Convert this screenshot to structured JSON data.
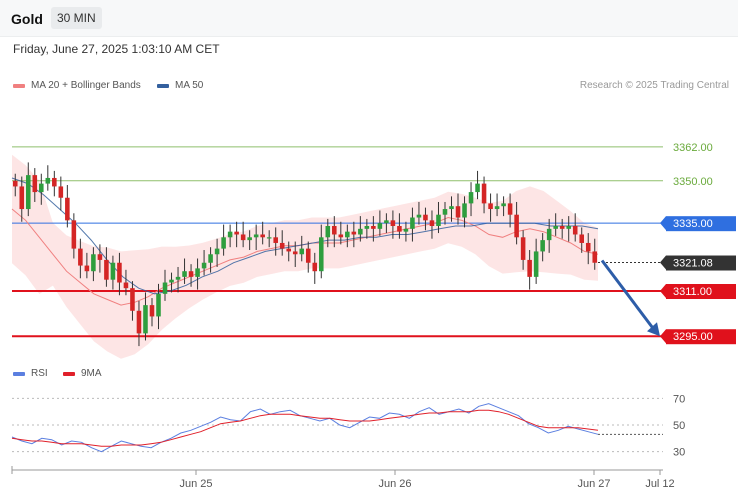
{
  "header": {
    "symbol": "Gold",
    "timeframe": "30 MIN",
    "datetime": "Friday, June 27, 2025 1:03:10 AM CET"
  },
  "legend": {
    "main": [
      {
        "label": "MA 20 + Bollinger Bands",
        "color": "#f08080"
      },
      {
        "label": "MA 50",
        "color": "#34609e"
      }
    ],
    "rsi": [
      {
        "label": "RSI",
        "color": "#5b7fe0"
      },
      {
        "label": "9MA",
        "color": "#e0202a"
      }
    ]
  },
  "credit": "Research © 2025 Trading Central",
  "chart_data": [
    {
      "type": "line",
      "title": "Gold 30 MIN",
      "x_labels": [
        "Jun 25",
        "Jun 26",
        "Jun 27",
        "Jul 12"
      ],
      "levels": [
        {
          "label": "3362.00",
          "value": 3362.0,
          "color": "#6aaa3c",
          "kind": "resistance"
        },
        {
          "label": "3350.00",
          "value": 3350.0,
          "color": "#6aaa3c",
          "kind": "resistance"
        },
        {
          "label": "3335.00",
          "value": 3335.0,
          "color": "#2f6fe0",
          "kind": "pivot"
        },
        {
          "label": "3321.08",
          "value": 3321.08,
          "color": "#333333",
          "kind": "last"
        },
        {
          "label": "3311.00",
          "value": 3311.0,
          "color": "#e0111c",
          "kind": "support"
        },
        {
          "label": "3295.00",
          "value": 3295.0,
          "color": "#e0111c",
          "kind": "support"
        }
      ],
      "price_path": [
        3348,
        3340,
        3352,
        3346,
        3349,
        3351,
        3348,
        3344,
        3336,
        3326,
        3320,
        3318,
        3324,
        3322,
        3315,
        3321,
        3314,
        3312,
        3304,
        3296,
        3306,
        3302,
        3310,
        3314,
        3315,
        3316,
        3318,
        3316,
        3319,
        3321,
        3324,
        3326,
        3330,
        3332,
        3331,
        3329,
        3330,
        3331,
        3330,
        3330,
        3328,
        3326,
        3325,
        3324,
        3326,
        3321,
        3318,
        3330,
        3334,
        3331,
        3330,
        3332,
        3331,
        3333,
        3334,
        3333,
        3335,
        3336,
        3334,
        3332,
        3333,
        3337,
        3338,
        3336,
        3334,
        3338,
        3340,
        3341,
        3337,
        3342,
        3346,
        3349,
        3342,
        3340,
        3341,
        3342,
        3338,
        3330,
        3322,
        3316,
        3325,
        3329,
        3333,
        3334,
        3333,
        3334,
        3331,
        3328,
        3325,
        3321
      ],
      "ma20": [
        3340,
        3336,
        3330,
        3324,
        3318,
        3314,
        3310,
        3308,
        3306,
        3307,
        3309,
        3312,
        3314,
        3316,
        3318,
        3320,
        3322,
        3323,
        3325,
        3326,
        3327,
        3327,
        3328,
        3328,
        3328,
        3329,
        3330,
        3331,
        3332,
        3333,
        3334,
        3335,
        3337,
        3336,
        3334,
        3331,
        3330,
        3332,
        3333,
        3332,
        3330,
        3328,
        3325,
        3324
      ],
      "ma50": [
        3351,
        3349,
        3345,
        3340,
        3335,
        3329,
        3322,
        3316,
        3312,
        3310,
        3311,
        3313,
        3316,
        3318,
        3321,
        3323,
        3325,
        3326,
        3327,
        3328,
        3329,
        3329,
        3330,
        3330,
        3331,
        3331,
        3332,
        3333,
        3334,
        3334,
        3335,
        3335,
        3335,
        3335,
        3334,
        3334,
        3334,
        3333
      ],
      "ylim": [
        3288,
        3380
      ]
    },
    {
      "type": "line",
      "title": "RSI",
      "y_ticks": [
        70,
        50,
        30
      ],
      "ylim": [
        20,
        80
      ],
      "series": [
        {
          "name": "RSI",
          "values": [
            41,
            38,
            36,
            40,
            39,
            35,
            38,
            37,
            33,
            30,
            34,
            38,
            36,
            34,
            33,
            37,
            40,
            44,
            46,
            49,
            52,
            56,
            54,
            53,
            60,
            62,
            58,
            60,
            61,
            57,
            55,
            53,
            55,
            50,
            48,
            52,
            56,
            55,
            59,
            58,
            55,
            60,
            63,
            58,
            60,
            62,
            59,
            64,
            66,
            63,
            60,
            57,
            51,
            48,
            44,
            46,
            49,
            47,
            45,
            43
          ],
          "color": "#5b7fe0"
        },
        {
          "name": "9MA",
          "values": [
            40,
            39,
            38,
            38,
            37,
            36,
            36,
            36,
            35,
            34,
            34,
            35,
            35,
            35,
            36,
            37,
            39,
            41,
            43,
            45,
            48,
            51,
            52,
            53,
            55,
            57,
            58,
            58,
            58,
            57,
            56,
            55,
            55,
            54,
            53,
            53,
            53,
            54,
            55,
            56,
            57,
            58,
            59,
            59,
            60,
            60,
            60,
            61,
            61,
            60,
            58,
            55,
            52,
            49,
            48,
            48,
            48,
            48,
            47,
            46
          ],
          "color": "#e0202a"
        }
      ]
    }
  ]
}
